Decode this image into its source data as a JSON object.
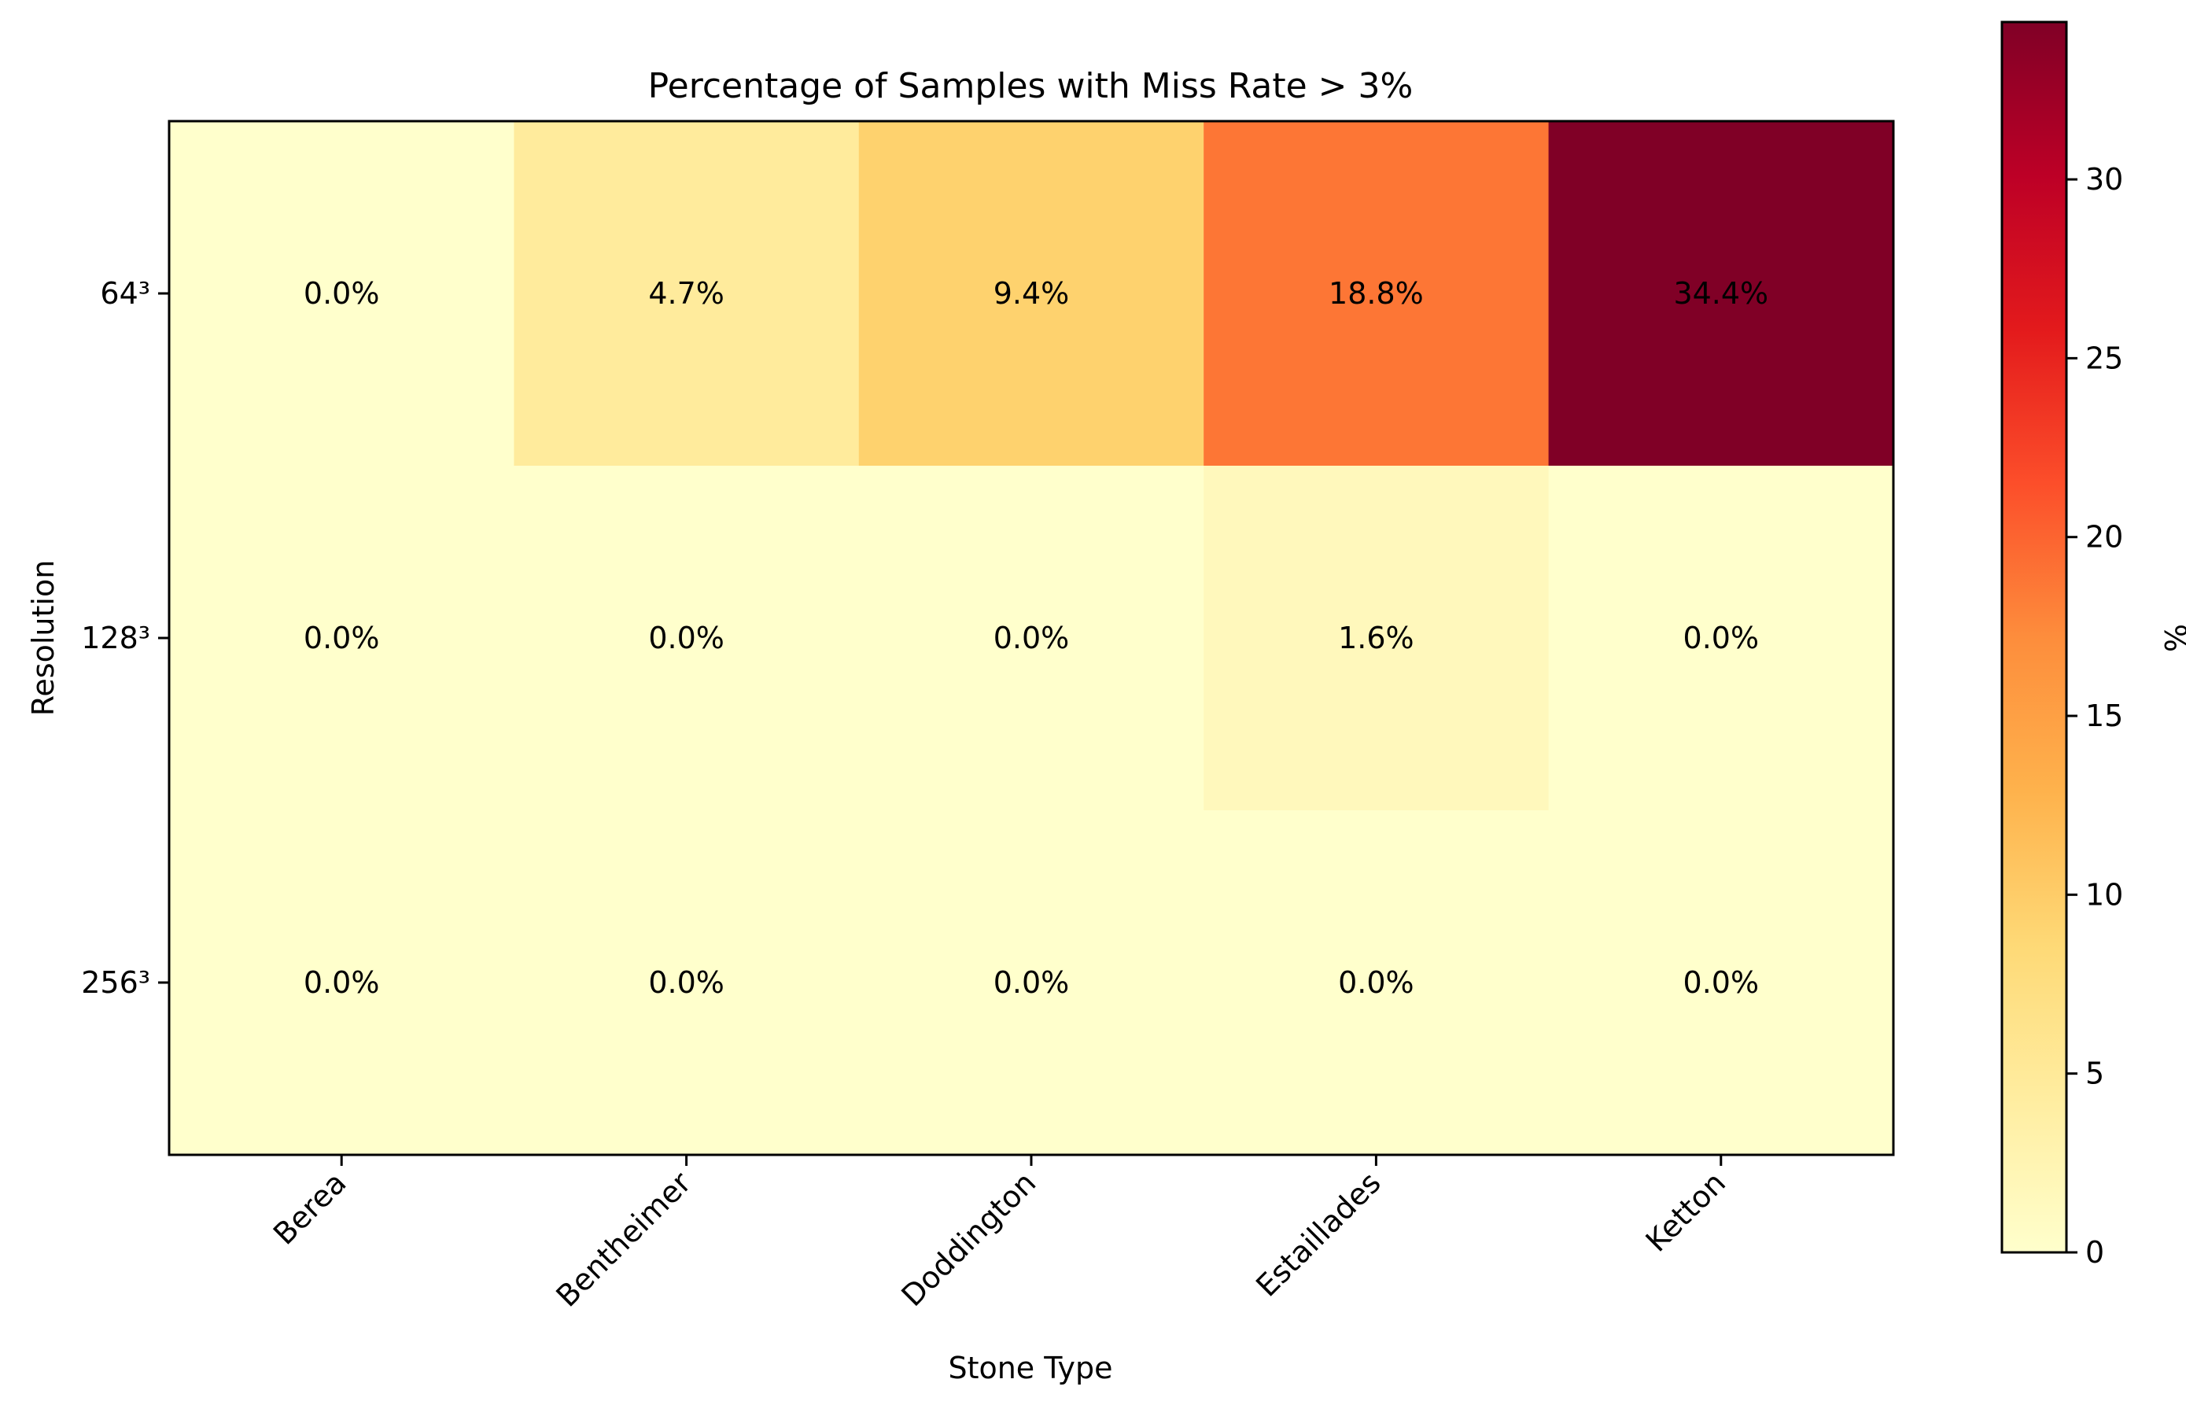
{
  "chart_data": {
    "type": "heatmap",
    "title": "Percentage of Samples with Miss Rate > 3%",
    "xlabel": "Stone Type",
    "ylabel": "Resolution",
    "x_categories": [
      "Berea",
      "Bentheimer",
      "Doddington",
      "Estaillades",
      "Ketton"
    ],
    "y_categories": [
      "64³",
      "128³",
      "256³"
    ],
    "values": [
      [
        0.0,
        4.7,
        9.4,
        18.8,
        34.4
      ],
      [
        0.0,
        0.0,
        0.0,
        1.6,
        0.0
      ],
      [
        0.0,
        0.0,
        0.0,
        0.0,
        0.0
      ]
    ],
    "cell_labels": [
      [
        "0.0%",
        "4.7%",
        "9.4%",
        "18.8%",
        "34.4%"
      ],
      [
        "0.0%",
        "0.0%",
        "0.0%",
        "1.6%",
        "0.0%"
      ],
      [
        "0.0%",
        "0.0%",
        "0.0%",
        "0.0%",
        "0.0%"
      ]
    ],
    "colormap": "YlOrRd",
    "colorbar": {
      "label": "%",
      "range": [
        0,
        34.4
      ],
      "ticks": [
        0,
        5,
        10,
        15,
        20,
        25,
        30
      ],
      "tick_labels": [
        "0",
        "5",
        "10",
        "15",
        "20",
        "25",
        "30"
      ]
    },
    "grid": false
  }
}
